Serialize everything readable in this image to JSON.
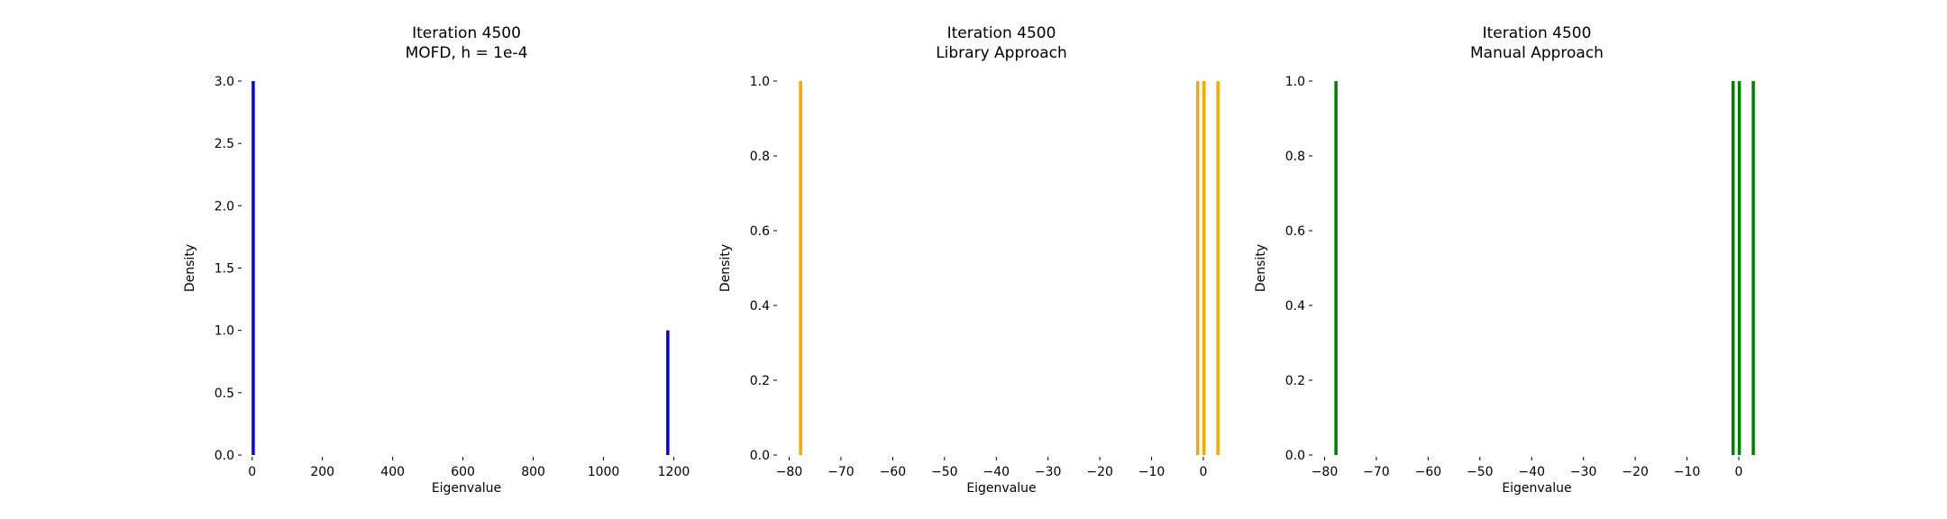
{
  "chart_data": [
    {
      "type": "bar",
      "title": [
        "Iteration 4500",
        "MOFD, h = 1e-4"
      ],
      "xlabel": "Eigenvalue",
      "ylabel": "Density",
      "xlim": [
        -25,
        1245
      ],
      "ylim": [
        0,
        3.0
      ],
      "xticks": [
        0,
        200,
        400,
        600,
        800,
        1000,
        1200
      ],
      "yticks": [
        0.0,
        0.5,
        1.0,
        1.5,
        2.0,
        2.5,
        3.0
      ],
      "ytick_decimals": 1,
      "grid": false,
      "color": "#0000ff",
      "x": [
        3,
        1183
      ],
      "values": [
        3,
        1
      ]
    },
    {
      "type": "bar",
      "title": [
        "Iteration 4500",
        "Library Approach"
      ],
      "xlabel": "Eigenvalue",
      "ylabel": "Density",
      "xlim": [
        -82,
        4
      ],
      "ylim": [
        0,
        1.0
      ],
      "xticks": [
        -80,
        -70,
        -60,
        -50,
        -40,
        -30,
        -20,
        -10,
        0
      ],
      "yticks": [
        0.0,
        0.2,
        0.4,
        0.6,
        0.8,
        1.0
      ],
      "ytick_decimals": 1,
      "grid": false,
      "color": "#ffa500",
      "x": [
        -77.8,
        -1.1,
        0.1,
        2.8
      ],
      "values": [
        1,
        1,
        1,
        1
      ]
    },
    {
      "type": "bar",
      "title": [
        "Iteration 4500",
        "Manual Approach"
      ],
      "xlabel": "Eigenvalue",
      "ylabel": "Density",
      "xlim": [
        -82,
        4
      ],
      "ylim": [
        0,
        1.0
      ],
      "xticks": [
        -80,
        -70,
        -60,
        -50,
        -40,
        -30,
        -20,
        -10,
        0
      ],
      "yticks": [
        0.0,
        0.2,
        0.4,
        0.6,
        0.8,
        1.0
      ],
      "ytick_decimals": 1,
      "grid": false,
      "color": "#008000",
      "x": [
        -77.8,
        -1.1,
        0.1,
        2.8
      ],
      "values": [
        1,
        1,
        1,
        1
      ]
    }
  ]
}
